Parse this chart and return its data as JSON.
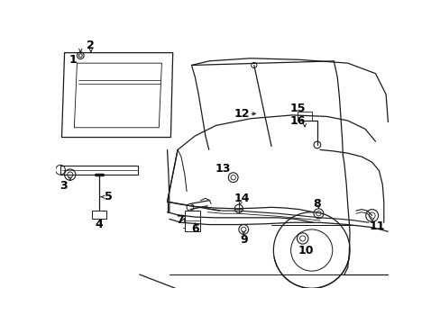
{
  "bg_color": "#ffffff",
  "lc": "#1a1a1a",
  "lw": 0.9
}
